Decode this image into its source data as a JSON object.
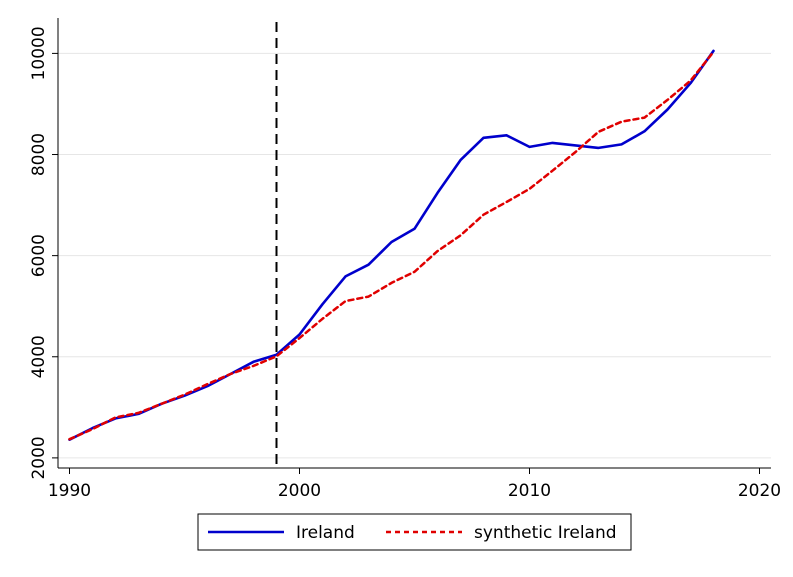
{
  "chart_data": {
    "type": "line",
    "title": "",
    "xlabel": "",
    "ylabel": "",
    "xlim": [
      1989.5,
      2020.5
    ],
    "ylim": [
      1800,
      10700
    ],
    "xticks": [
      1990,
      2000,
      2010,
      2020
    ],
    "yticks": [
      2000,
      4000,
      6000,
      8000,
      10000
    ],
    "grid": true,
    "treatment_year": 1999,
    "legend_position": "bottom",
    "series": [
      {
        "name": "Ireland",
        "color": "#0000cc",
        "style": "solid",
        "x": [
          1990,
          1991,
          1992,
          1993,
          1994,
          1995,
          1996,
          1997,
          1998,
          1999,
          2000,
          2001,
          2002,
          2003,
          2004,
          2005,
          2006,
          2007,
          2008,
          2009,
          2010,
          2011,
          2012,
          2013,
          2014,
          2015,
          2016,
          2017,
          2018
        ],
        "values": [
          2360,
          2590,
          2780,
          2870,
          3070,
          3230,
          3420,
          3660,
          3900,
          4040,
          4440,
          5040,
          5590,
          5820,
          6270,
          6530,
          7240,
          7890,
          8330,
          8380,
          8150,
          8230,
          8180,
          8130,
          8200,
          8460,
          8890,
          9410,
          10050
        ]
      },
      {
        "name": "synthetic Ireland",
        "color": "#e00000",
        "style": "dashed",
        "x": [
          1990,
          1991,
          1992,
          1993,
          1994,
          1995,
          1996,
          1997,
          1998,
          1999,
          2000,
          2001,
          2002,
          2003,
          2004,
          2005,
          2006,
          2007,
          2008,
          2009,
          2010,
          2011,
          2012,
          2013,
          2014,
          2015,
          2016,
          2017,
          2018
        ],
        "values": [
          2370,
          2570,
          2800,
          2890,
          3070,
          3250,
          3460,
          3660,
          3820,
          4010,
          4370,
          4750,
          5100,
          5190,
          5460,
          5680,
          6090,
          6400,
          6810,
          7060,
          7320,
          7680,
          8050,
          8450,
          8650,
          8730,
          9080,
          9460,
          10030
        ]
      }
    ]
  }
}
